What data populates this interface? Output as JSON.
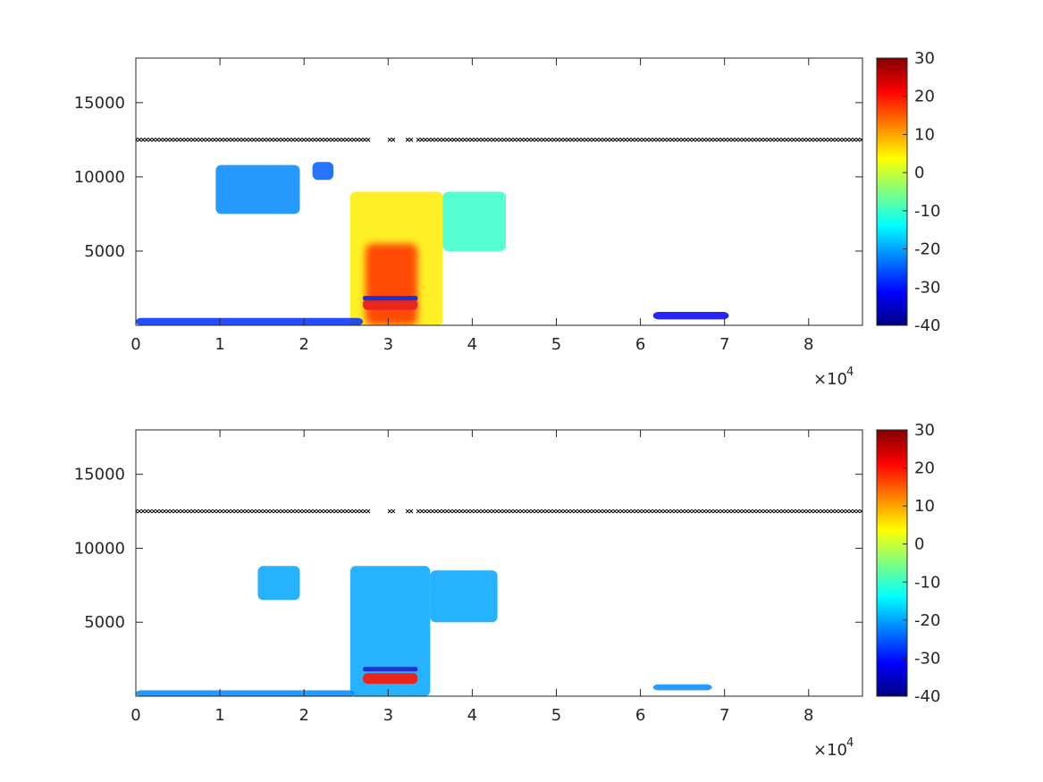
{
  "chart_data": [
    {
      "type": "heatmap",
      "title": "",
      "xlabel": "",
      "ylabel": "",
      "xlim": [
        0,
        86400
      ],
      "ylim": [
        0,
        18000
      ],
      "xticks": [
        0,
        10000,
        20000,
        30000,
        40000,
        50000,
        60000,
        70000,
        80000
      ],
      "xtick_labels": [
        "0",
        "1",
        "2",
        "3",
        "4",
        "5",
        "6",
        "7",
        "8"
      ],
      "x_exponent_label": "×10",
      "x_exponent_power": "4",
      "yticks": [
        5000,
        10000,
        15000
      ],
      "ytick_labels": [
        "5000",
        "10000",
        "15000"
      ],
      "grid": false,
      "colorbar": {
        "colormap": "jet",
        "range": [
          -40,
          30
        ],
        "ticks": [
          -40,
          -30,
          -20,
          -10,
          0,
          10,
          20,
          30
        ],
        "tick_labels": [
          "-40",
          "-30",
          "-20",
          "-10",
          "0",
          "10",
          "20",
          "30"
        ]
      },
      "reference_line": {
        "y": 12500,
        "marker": "x",
        "color": "#000000",
        "gaps": [
          [
            28000,
            30000
          ],
          [
            30800,
            32000
          ],
          [
            32800,
            33500
          ]
        ]
      },
      "marker_band": {
        "y_blue": 1800,
        "y_red": 1400,
        "x_range": [
          27000,
          33500
        ],
        "colors": [
          "#1f2fd0",
          "#e8261c"
        ]
      },
      "regions": [
        {
          "label": "cloud-left-upper",
          "x": [
            9500,
            19500
          ],
          "y": [
            7500,
            10800
          ],
          "level": -22
        },
        {
          "label": "cloud-left-small",
          "x": [
            21000,
            23500
          ],
          "y": [
            9800,
            11000
          ],
          "level": -25
        },
        {
          "label": "convective-core",
          "x": [
            25500,
            36500
          ],
          "y": [
            0,
            9000
          ],
          "level": 5
        },
        {
          "label": "anvil-right",
          "x": [
            36500,
            44000
          ],
          "y": [
            5000,
            9000
          ],
          "level": -10
        },
        {
          "label": "surface-layer",
          "x": [
            0,
            27000
          ],
          "y": [
            0,
            500
          ],
          "level": -28
        },
        {
          "label": "surface-patch-6",
          "x": [
            61500,
            70500
          ],
          "y": [
            400,
            900
          ],
          "level": -32
        }
      ]
    },
    {
      "type": "heatmap",
      "title": "",
      "xlabel": "",
      "ylabel": "",
      "xlim": [
        0,
        86400
      ],
      "ylim": [
        0,
        18000
      ],
      "xticks": [
        0,
        10000,
        20000,
        30000,
        40000,
        50000,
        60000,
        70000,
        80000
      ],
      "xtick_labels": [
        "0",
        "1",
        "2",
        "3",
        "4",
        "5",
        "6",
        "7",
        "8"
      ],
      "x_exponent_label": "×10",
      "x_exponent_power": "4",
      "yticks": [
        5000,
        10000,
        15000
      ],
      "ytick_labels": [
        "5000",
        "10000",
        "15000"
      ],
      "grid": false,
      "colorbar": {
        "colormap": "jet",
        "range": [
          -40,
          30
        ],
        "ticks": [
          -40,
          -30,
          -20,
          -10,
          0,
          10,
          20,
          30
        ],
        "tick_labels": [
          "-40",
          "-30",
          "-20",
          "-10",
          "0",
          "10",
          "20",
          "30"
        ]
      },
      "reference_line": {
        "y": 12500,
        "marker": "x",
        "color": "#000000",
        "gaps": [
          [
            28000,
            30000
          ],
          [
            30800,
            32000
          ],
          [
            32800,
            33500
          ]
        ]
      },
      "marker_band": {
        "y_blue": 1800,
        "y_red": 1200,
        "x_range": [
          27000,
          33500
        ],
        "colors": [
          "#1f2fd0",
          "#e8261c"
        ]
      },
      "regions": [
        {
          "label": "cloud-left",
          "x": [
            14500,
            19500
          ],
          "y": [
            6500,
            8800
          ],
          "level": -20
        },
        {
          "label": "convective-core",
          "x": [
            25500,
            35000
          ],
          "y": [
            0,
            8800
          ],
          "level": -20
        },
        {
          "label": "anvil-right",
          "x": [
            35000,
            43000
          ],
          "y": [
            5000,
            8500
          ],
          "level": -20
        },
        {
          "label": "surface-layer",
          "x": [
            0,
            26000
          ],
          "y": [
            0,
            400
          ],
          "level": -22
        },
        {
          "label": "surface-patch-6",
          "x": [
            61500,
            68500
          ],
          "y": [
            400,
            800
          ],
          "level": -22
        }
      ]
    }
  ]
}
